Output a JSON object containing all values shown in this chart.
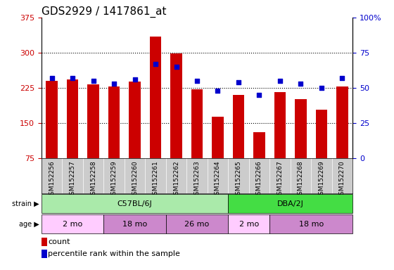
{
  "title": "GDS2929 / 1417861_at",
  "samples": [
    "GSM152256",
    "GSM152257",
    "GSM152258",
    "GSM152259",
    "GSM152260",
    "GSM152261",
    "GSM152262",
    "GSM152263",
    "GSM152264",
    "GSM152265",
    "GSM152266",
    "GSM152267",
    "GSM152268",
    "GSM152269",
    "GSM152270"
  ],
  "counts": [
    240,
    242,
    232,
    228,
    238,
    335,
    298,
    222,
    163,
    210,
    130,
    215,
    200,
    178,
    228
  ],
  "percentile_ranks": [
    57,
    57,
    55,
    53,
    56,
    67,
    65,
    55,
    48,
    54,
    45,
    55,
    53,
    50,
    57
  ],
  "ylim_left": [
    75,
    375
  ],
  "ylim_right": [
    0,
    100
  ],
  "yticks_left": [
    75,
    150,
    225,
    300,
    375
  ],
  "yticks_right": [
    0,
    25,
    50,
    75,
    100
  ],
  "bar_color": "#cc0000",
  "dot_color": "#0000cc",
  "grid_color": "#000000",
  "strain_groups": [
    {
      "label": "C57BL/6J",
      "start": 0,
      "end": 9,
      "color": "#aaeaaa"
    },
    {
      "label": "DBA/2J",
      "start": 9,
      "end": 15,
      "color": "#44dd44"
    }
  ],
  "age_groups": [
    {
      "label": "2 mo",
      "start": 0,
      "end": 3,
      "color": "#ffccff"
    },
    {
      "label": "18 mo",
      "start": 3,
      "end": 6,
      "color": "#cc88cc"
    },
    {
      "label": "26 mo",
      "start": 6,
      "end": 9,
      "color": "#cc88cc"
    },
    {
      "label": "2 mo",
      "start": 9,
      "end": 11,
      "color": "#ffccff"
    },
    {
      "label": "18 mo",
      "start": 11,
      "end": 15,
      "color": "#cc88cc"
    }
  ],
  "legend_count_label": "count",
  "legend_pct_label": "percentile rank within the sample",
  "left_axis_color": "#cc0000",
  "right_axis_color": "#0000cc",
  "title_fontsize": 11,
  "axis_tick_fontsize": 8,
  "sample_tick_fontsize": 6.5,
  "bar_width": 0.55,
  "gridline_ticks": [
    150,
    225,
    300
  ],
  "xticklabel_bg": "#cccccc"
}
